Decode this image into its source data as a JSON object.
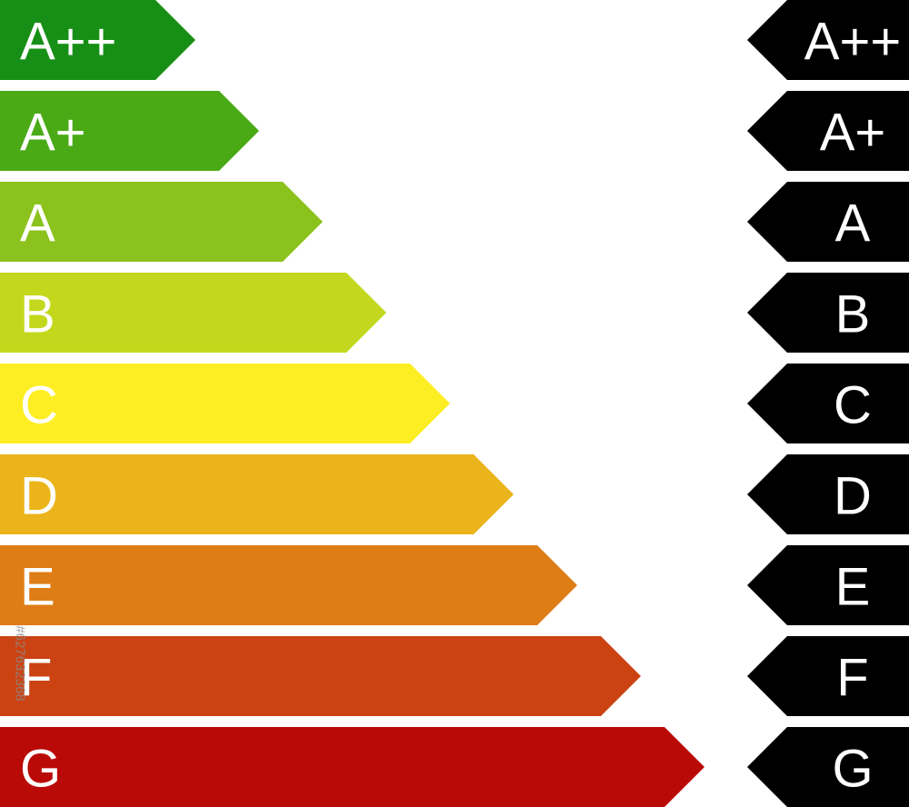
{
  "ratings": [
    {
      "label": "A++",
      "color": "#178f17"
    },
    {
      "label": "A+",
      "color": "#4aaa16"
    },
    {
      "label": "A",
      "color": "#8bc21d"
    },
    {
      "label": "B",
      "color": "#c3d81d"
    },
    {
      "label": "C",
      "color": "#fcee22"
    },
    {
      "label": "D",
      "color": "#ebb41b"
    },
    {
      "label": "E",
      "color": "#de7c16"
    },
    {
      "label": "F",
      "color": "#cb4312"
    },
    {
      "label": "G",
      "color": "#ba0a08"
    }
  ],
  "indicators": [
    {
      "label": "A++"
    },
    {
      "label": "A+"
    },
    {
      "label": "A"
    },
    {
      "label": "B"
    },
    {
      "label": "C"
    },
    {
      "label": "D"
    },
    {
      "label": "E"
    },
    {
      "label": "F"
    },
    {
      "label": "G"
    }
  ],
  "indicator_color": "#000000",
  "watermark": "#627632368"
}
